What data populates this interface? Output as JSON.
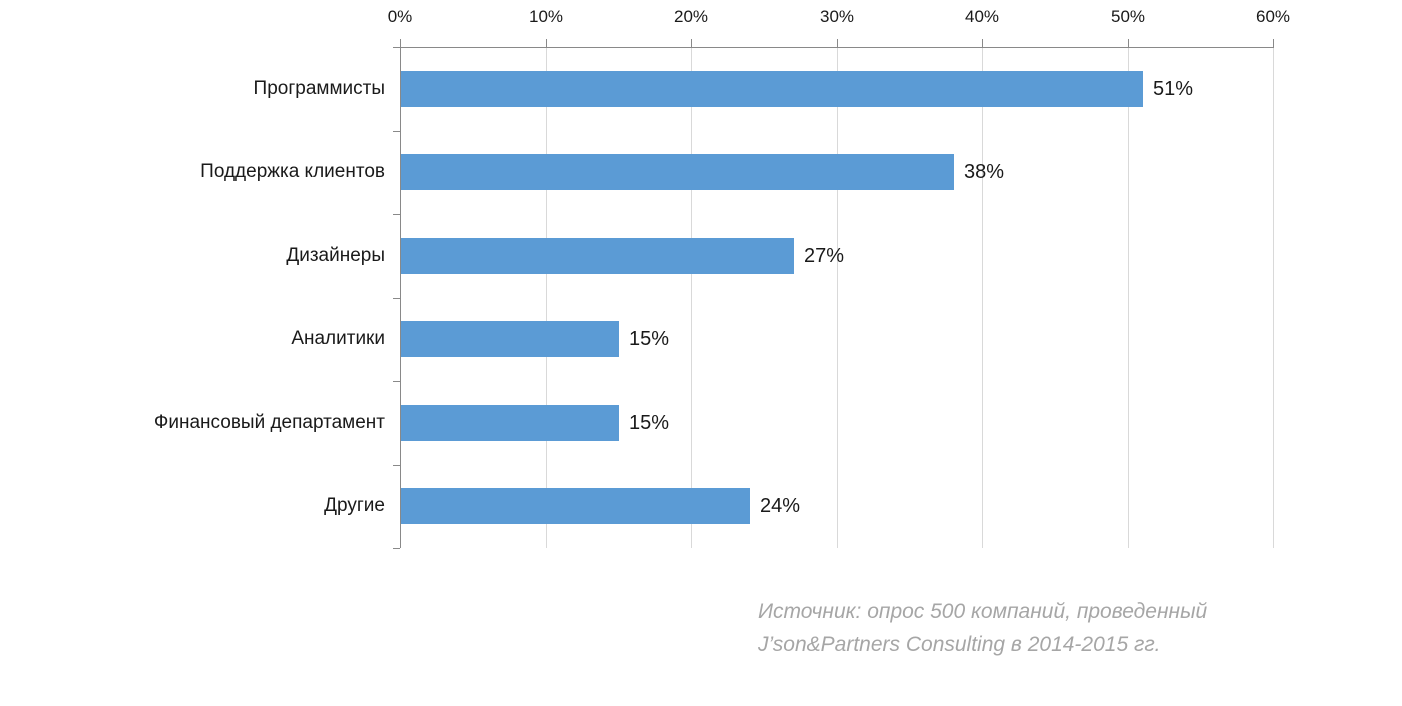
{
  "chart_data": {
    "type": "bar",
    "orientation": "horizontal",
    "title": "",
    "xlabel": "",
    "ylabel": "",
    "categories": [
      "Программисты",
      "Поддержка клиентов",
      "Дизайнеры",
      "Аналитики",
      "Финансовый департамент",
      "Другие"
    ],
    "values": [
      51,
      38,
      27,
      15,
      15,
      24
    ],
    "data_labels": [
      "51%",
      "38%",
      "27%",
      "15%",
      "15%",
      "24%"
    ],
    "x_ticks": [
      {
        "value": 0,
        "label": "0%"
      },
      {
        "value": 10,
        "label": "10%"
      },
      {
        "value": 20,
        "label": "20%"
      },
      {
        "value": 30,
        "label": "30%"
      },
      {
        "value": 40,
        "label": "40%"
      },
      {
        "value": 50,
        "label": "50%"
      },
      {
        "value": 60,
        "label": "60%"
      }
    ],
    "xlim": [
      0,
      60
    ],
    "grid": true,
    "legend": false,
    "axis_position": "top",
    "colors": {
      "bar": "#5b9bd5",
      "axis": "#898989",
      "gridline": "#d9d9d9",
      "text": "#1a1a1a"
    }
  },
  "source_note": {
    "line1": "Источник: опрос 500 компаний, проведенный",
    "line2": "J’son&Partners Consulting в 2014-2015 гг.",
    "color": "#a6a6a6"
  }
}
